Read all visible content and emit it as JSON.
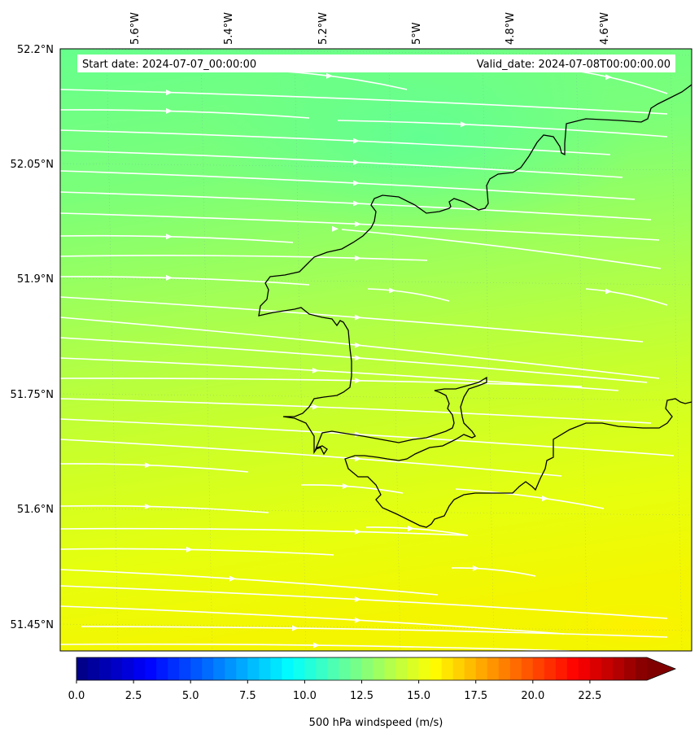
{
  "header": {
    "start_date": "Start date: 2024-07-07_00:00:00",
    "valid_date": "Valid_date: 2024-07-08T00:00:00.00"
  },
  "lon_ticks": [
    "5.6°W",
    "5.4°W",
    "5.2°W",
    "5°W",
    "4.8°W",
    "4.6°W"
  ],
  "lat_ticks": [
    "52.2°N",
    "52.05°N",
    "51.9°N",
    "51.75°N",
    "51.6°N",
    "51.45°N"
  ],
  "colorbar": {
    "label": "500 hPa windspeed (m/s)",
    "ticks": [
      "0.0",
      "2.5",
      "5.0",
      "7.5",
      "10.0",
      "12.5",
      "15.0",
      "17.5",
      "20.0",
      "22.5"
    ],
    "min": 0,
    "max": 25,
    "step": 0.5,
    "extend": "max",
    "colormap": "jet"
  },
  "field": {
    "variable": "500 hPa windspeed",
    "units": "m/s",
    "range_shown": [
      12,
      17
    ],
    "gradient": "stronger toward south-east",
    "colors": {
      "north": "#6aff8a",
      "mid": "#a8ff52",
      "south": "#f0f000",
      "coast": "#000000",
      "streamline": "#ffffff"
    }
  },
  "streamlines": {
    "direction": "west-to-east",
    "count": 28
  }
}
